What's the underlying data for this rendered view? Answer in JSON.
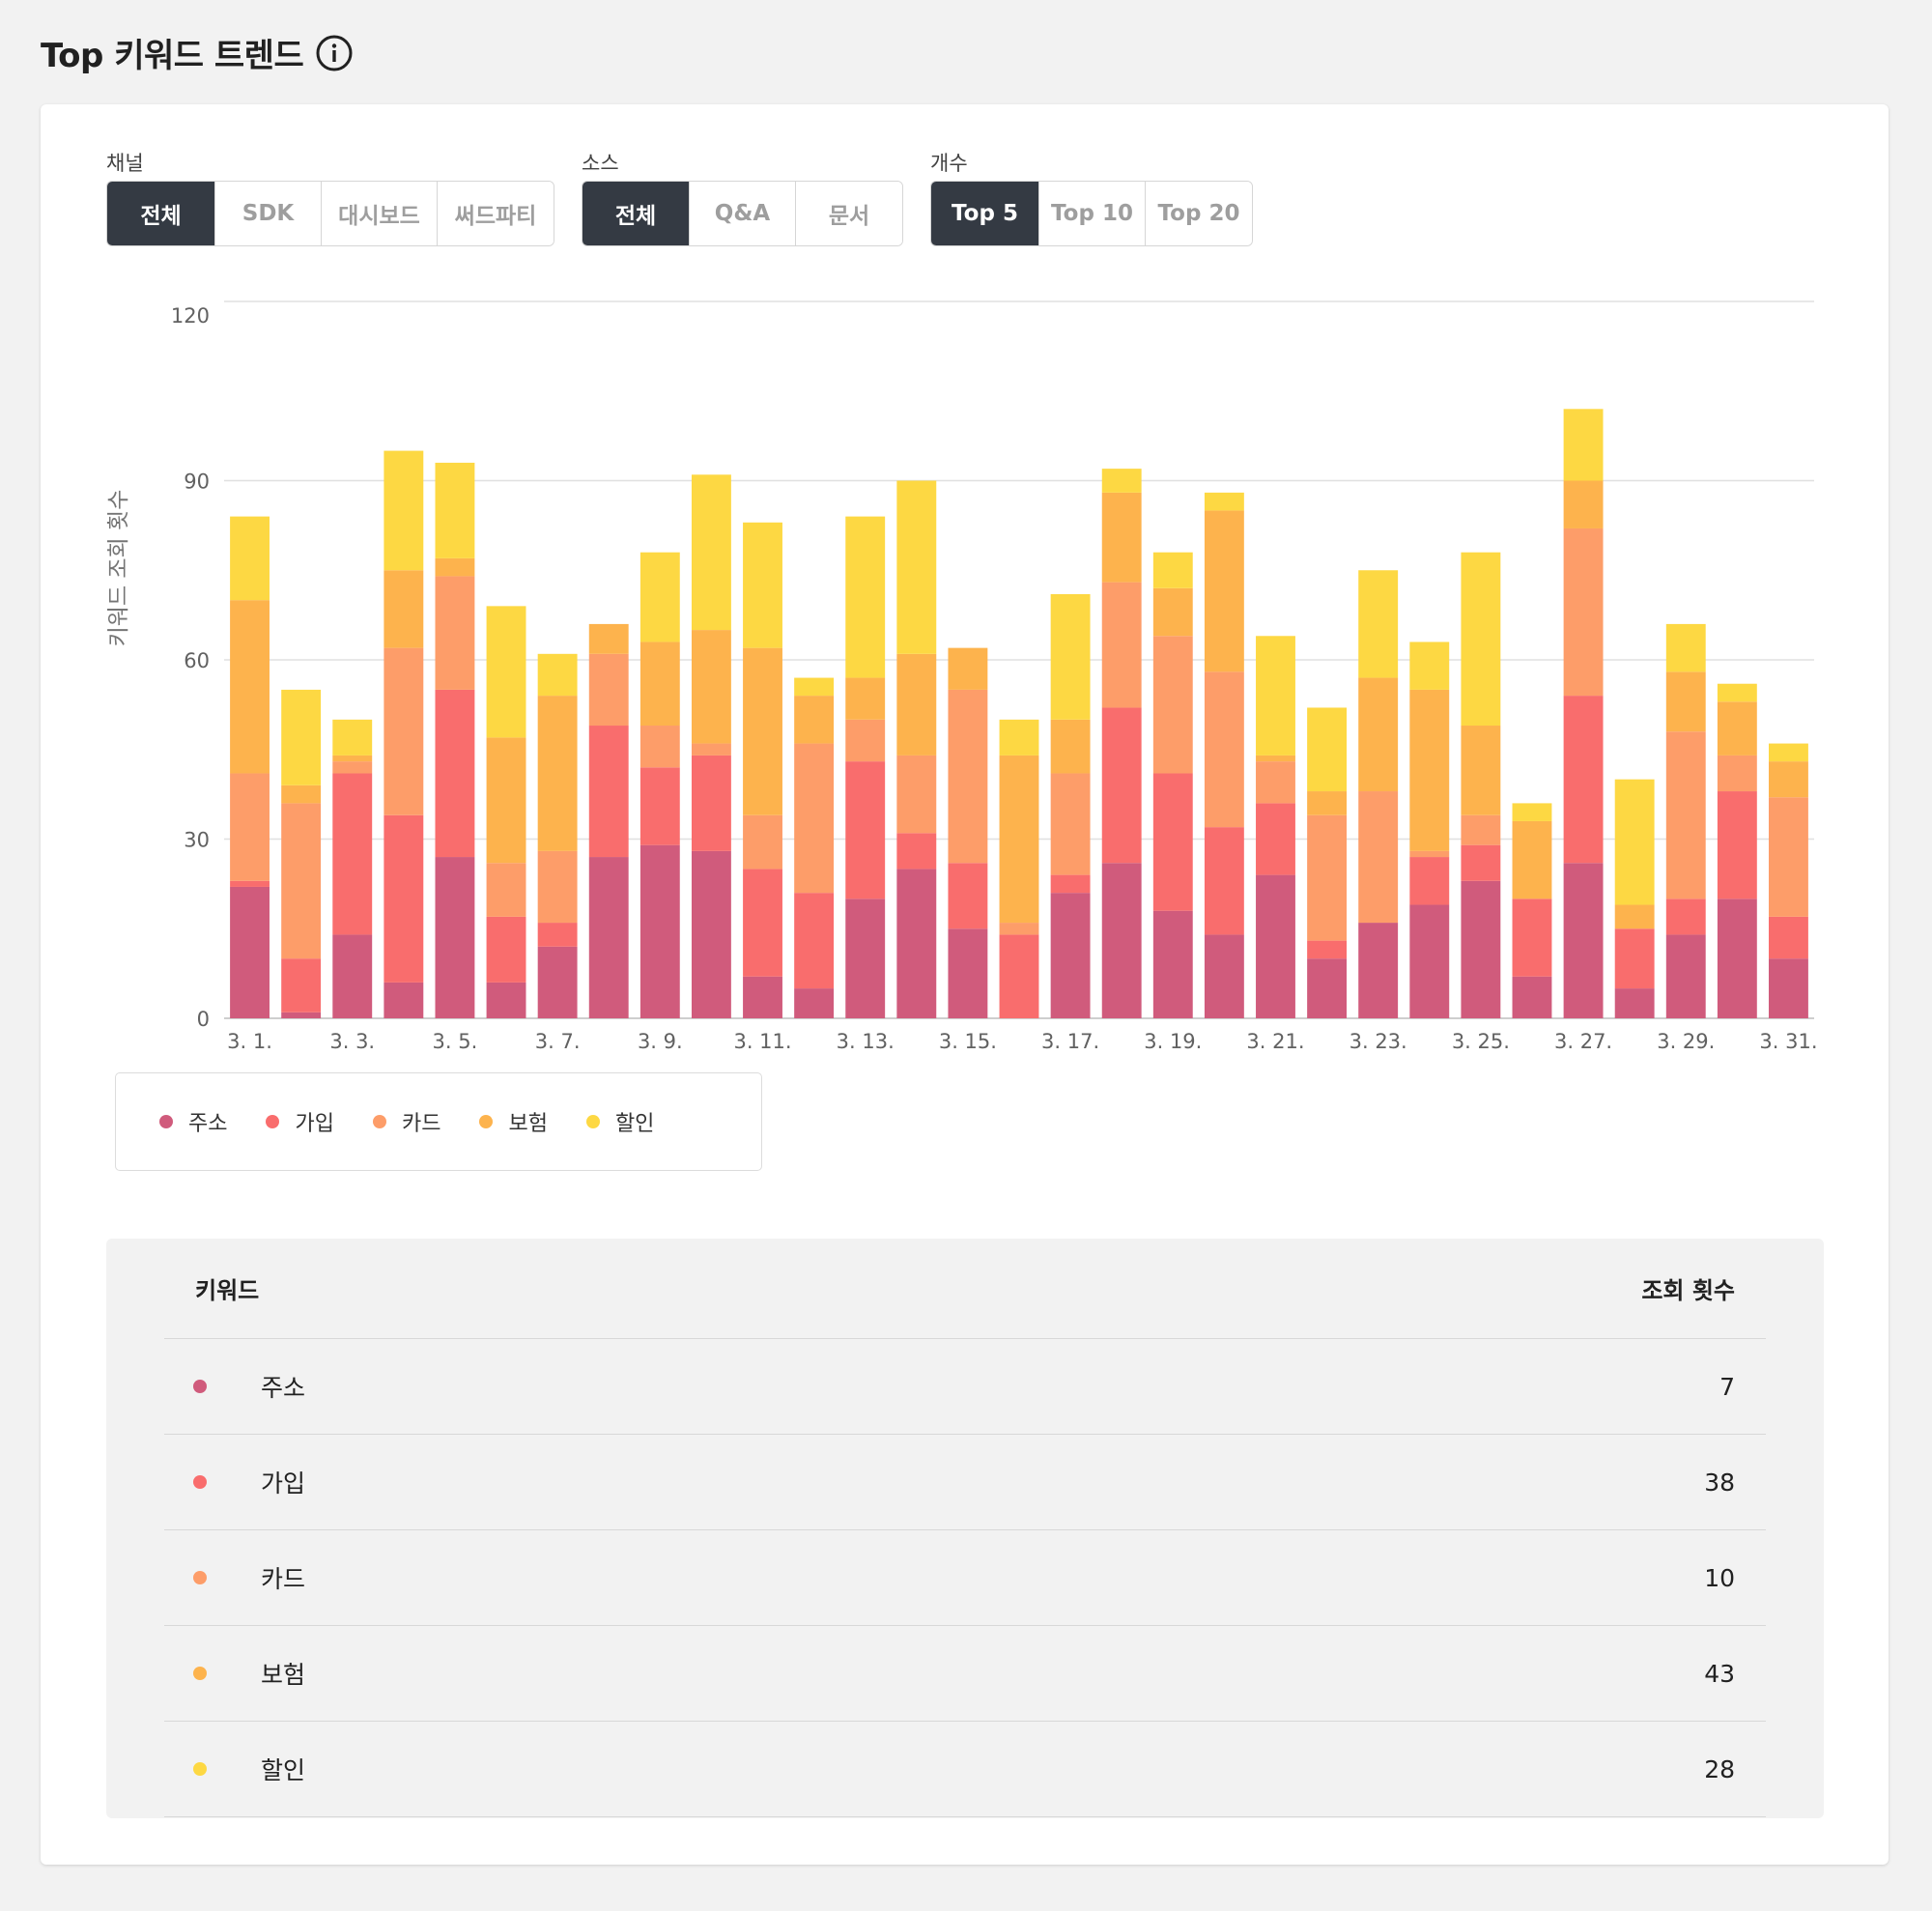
{
  "page": {
    "title": "Top 키워드 트렌드"
  },
  "filters": {
    "channel": {
      "label": "채널",
      "options": [
        "전체",
        "SDK",
        "대시보드",
        "써드파티"
      ],
      "selected": 0
    },
    "source": {
      "label": "소스",
      "options": [
        "전체",
        "Q&A",
        "문서"
      ],
      "selected": 0
    },
    "count": {
      "label": "개수",
      "options": [
        "Top 5",
        "Top 10",
        "Top 20"
      ],
      "selected": 0
    }
  },
  "chart_data": {
    "type": "bar",
    "stacked": true,
    "ylabel": "키워드 조회 횟수",
    "xlabel": "",
    "ylim": [
      0,
      120
    ],
    "yticks": [
      0,
      30,
      60,
      90,
      120
    ],
    "grid": true,
    "legend_position": "bottom-left",
    "categories": [
      "3. 1.",
      "3. 2.",
      "3. 3.",
      "3. 4.",
      "3. 5.",
      "3. 6.",
      "3. 7.",
      "3. 8.",
      "3. 9.",
      "3. 10.",
      "3. 11.",
      "3. 12.",
      "3. 13.",
      "3. 14.",
      "3. 15.",
      "3. 16.",
      "3. 17.",
      "3. 18.",
      "3. 19.",
      "3. 20.",
      "3. 21.",
      "3. 22.",
      "3. 23.",
      "3. 24.",
      "3. 25.",
      "3. 26.",
      "3. 27.",
      "3. 28.",
      "3. 29.",
      "3. 30.",
      "3. 31."
    ],
    "tick_labels": [
      "3. 1.",
      "",
      "3. 3.",
      "",
      "3. 5.",
      "",
      "3. 7.",
      "",
      "3. 9.",
      "",
      "3. 11.",
      "",
      "3. 13.",
      "",
      "3. 15.",
      "",
      "3. 17.",
      "",
      "3. 19.",
      "",
      "3. 21.",
      "",
      "3. 23.",
      "",
      "3. 25.",
      "",
      "3. 27.",
      "",
      "3. 29.",
      "",
      "3. 31."
    ],
    "series": [
      {
        "name": "주소",
        "color": "#d05b7c",
        "values": [
          22,
          1,
          14,
          6,
          27,
          6,
          12,
          27,
          29,
          28,
          7,
          5,
          20,
          25,
          15,
          0,
          21,
          26,
          18,
          14,
          24,
          10,
          16,
          19,
          23,
          7,
          26,
          5,
          14,
          20,
          10
        ]
      },
      {
        "name": "가입",
        "color": "#f96d6d",
        "values": [
          1,
          9,
          27,
          28,
          28,
          11,
          4,
          22,
          13,
          16,
          18,
          16,
          23,
          6,
          11,
          14,
          3,
          26,
          23,
          18,
          12,
          3,
          0,
          8,
          6,
          13,
          28,
          10,
          6,
          18,
          7
        ]
      },
      {
        "name": "카드",
        "color": "#fd9d69",
        "values": [
          18,
          26,
          2,
          28,
          19,
          9,
          12,
          12,
          7,
          2,
          9,
          25,
          7,
          13,
          29,
          2,
          17,
          21,
          23,
          26,
          7,
          21,
          22,
          1,
          5,
          0,
          28,
          0,
          28,
          6,
          20
        ]
      },
      {
        "name": "보험",
        "color": "#fdb34d",
        "values": [
          29,
          3,
          1,
          13,
          3,
          21,
          26,
          5,
          14,
          19,
          28,
          8,
          7,
          17,
          7,
          28,
          9,
          15,
          8,
          27,
          1,
          4,
          19,
          27,
          15,
          13,
          8,
          4,
          10,
          9,
          6
        ]
      },
      {
        "name": "할인",
        "color": "#fdd843",
        "values": [
          14,
          16,
          6,
          20,
          16,
          22,
          7,
          0,
          15,
          26,
          21,
          3,
          27,
          29,
          0,
          6,
          21,
          4,
          6,
          3,
          20,
          14,
          18,
          8,
          29,
          3,
          12,
          21,
          8,
          3,
          3
        ]
      }
    ]
  },
  "table": {
    "header_keyword": "키워드",
    "header_count": "조회 횟수",
    "rows": [
      {
        "keyword": "주소",
        "count": "7",
        "color": "#d05b7c"
      },
      {
        "keyword": "가입",
        "count": "38",
        "color": "#f96d6d"
      },
      {
        "keyword": "카드",
        "count": "10",
        "color": "#fd9d69"
      },
      {
        "keyword": "보험",
        "count": "43",
        "color": "#fdb34d"
      },
      {
        "keyword": "할인",
        "count": "28",
        "color": "#fdd843"
      }
    ]
  }
}
